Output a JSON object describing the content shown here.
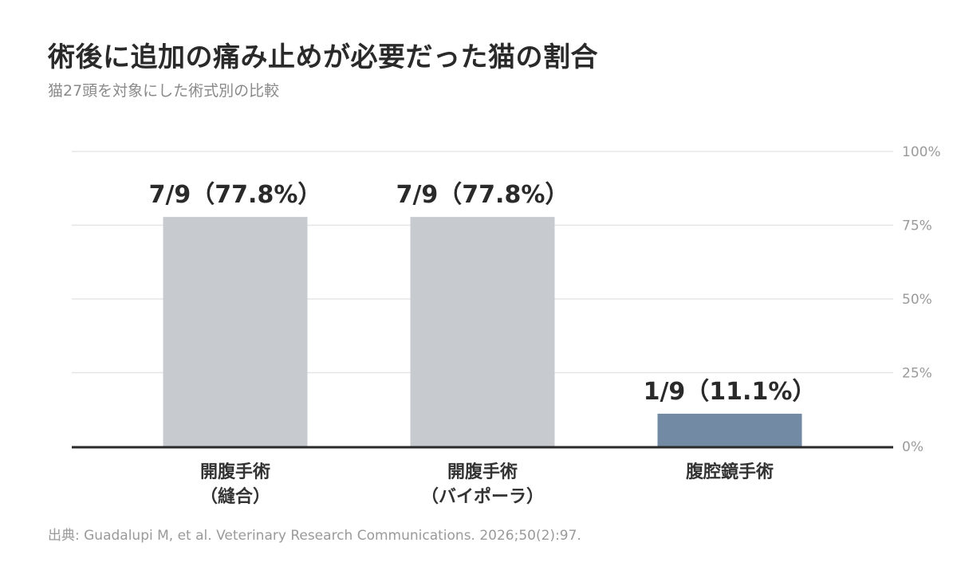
{
  "header": {
    "title": "術後に追加の痛み止めが必要だった猫の割合",
    "subtitle": "猫27頭を対象にした術式別の比較"
  },
  "footer": {
    "source": "出典: Guadalupi M, et al. Veterinary Research Communications. 2026;50(2):97."
  },
  "colors": {
    "bar_default": "#c7cbcf",
    "bar_highlight": "#728aa3",
    "grid": "#e3e5e7",
    "baseline": "#2a2a2a"
  },
  "chart_data": {
    "type": "bar",
    "title": "術後に追加の痛み止めが必要だった猫の割合",
    "xlabel": "",
    "ylabel": "",
    "ylim": [
      0,
      100
    ],
    "yticks": [
      0,
      25,
      50,
      75,
      100
    ],
    "ytick_labels": [
      "0%",
      "25%",
      "50%",
      "75%",
      "100%"
    ],
    "y_axis_position": "right",
    "grid": true,
    "legend": "none",
    "categories": [
      [
        "開腹手術",
        "（縫合）"
      ],
      [
        "開腹手術",
        "（バイポーラ）"
      ],
      [
        "腹腔鏡手術"
      ]
    ],
    "values": [
      77.8,
      77.8,
      11.1
    ],
    "data_labels": [
      "7/9（77.8%）",
      "7/9（77.8%）",
      "1/9（11.1%）"
    ],
    "highlight_index": 2
  }
}
